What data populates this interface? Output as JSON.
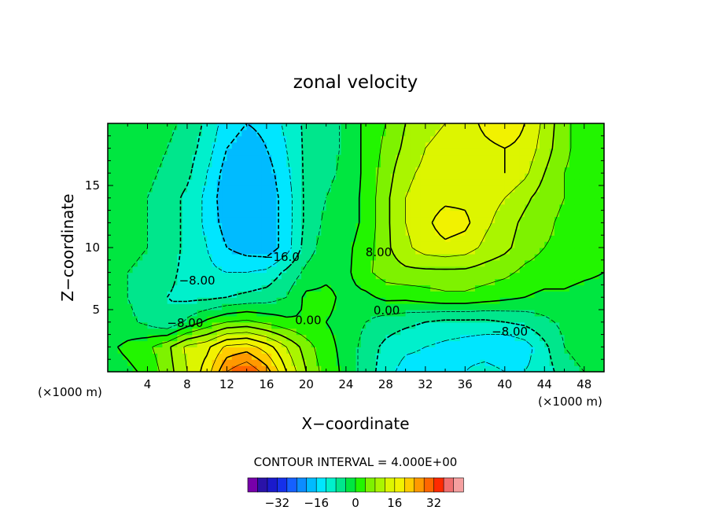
{
  "chart_data": {
    "type": "heatmap",
    "title": "zonal velocity",
    "xlabel": "X−coordinate",
    "ylabel": "Z−coordinate",
    "x_unit_left": "(×1000 m)",
    "x_unit_right": "(×1000 m)",
    "xlim": [
      0,
      50
    ],
    "ylim": [
      0,
      20
    ],
    "x_ticks": [
      4,
      8,
      12,
      16,
      20,
      24,
      28,
      32,
      36,
      40,
      44,
      48
    ],
    "y_ticks": [
      5,
      10,
      15
    ],
    "contour_interval_text": "CONTOUR INTERVAL = 4.000E+00",
    "colorbar": {
      "levels": [
        -40,
        -36,
        -32,
        -28,
        -24,
        -20,
        -16,
        -12,
        -8,
        -4,
        0,
        4,
        8,
        12,
        16,
        20,
        24,
        28,
        32,
        36,
        40
      ],
      "colors": [
        "#7700aa",
        "#2a12a8",
        "#1a1acc",
        "#1530ea",
        "#1560ff",
        "#0c8cff",
        "#00bbff",
        "#00e6ff",
        "#00f0cc",
        "#00e68c",
        "#00e640",
        "#22f500",
        "#7ef200",
        "#aaf500",
        "#ddf500",
        "#f2f200",
        "#ffcc00",
        "#ff9900",
        "#ff6600",
        "#ff2a00",
        "#f07070",
        "#f5a0a0"
      ],
      "tick_values": [
        -32,
        -16,
        0,
        16,
        32
      ],
      "tick_labels": [
        "−32",
        "−16",
        "0",
        "16",
        "32"
      ]
    },
    "contour_labels": [
      {
        "text": "−16.0",
        "x": 17.5,
        "y": 9.2
      },
      {
        "text": "−8.00",
        "x": 9.0,
        "y": 7.3
      },
      {
        "text": "−8.00",
        "x": 7.8,
        "y": 3.9
      },
      {
        "text": "0.00",
        "x": 20.2,
        "y": 4.1
      },
      {
        "text": "0.00",
        "x": 28.1,
        "y": 4.9
      },
      {
        "text": "8.00",
        "x": 27.3,
        "y": 9.6
      },
      {
        "text": "−8.00",
        "x": 40.5,
        "y": 3.2
      }
    ],
    "field": {
      "x": [
        0,
        2,
        4,
        6,
        8,
        10,
        12,
        14,
        16,
        18,
        20,
        22,
        24,
        26,
        28,
        30,
        32,
        34,
        36,
        38,
        40,
        42,
        44,
        46,
        48,
        50
      ],
      "z": [
        0,
        2,
        4,
        6,
        8,
        10,
        12,
        14,
        16,
        18,
        20
      ],
      "u": [
        [
          -2,
          -1,
          1,
          6,
          12,
          18,
          28,
          32,
          26,
          16,
          8,
          2,
          -1,
          -6,
          -10,
          -14,
          -14,
          -12,
          -12,
          -10,
          -12,
          -12,
          -10,
          -6,
          -4,
          -2
        ],
        [
          -1,
          1,
          3,
          7,
          13,
          15,
          21,
          22,
          18,
          12,
          6,
          1,
          -1,
          -6,
          -9,
          -11,
          -12,
          -13,
          -14,
          -15,
          -16,
          -14,
          -9,
          -4,
          -2,
          -1
        ],
        [
          -4,
          -3,
          -5,
          -8,
          -3,
          1,
          4,
          5,
          3,
          1,
          0,
          0,
          -1,
          -4,
          -6,
          -7,
          -8,
          -9,
          -9,
          -9,
          -8,
          -7,
          -5,
          -3,
          -2,
          -1
        ],
        [
          -3,
          -4,
          -6,
          -8,
          -9,
          -9,
          -8,
          -7,
          -6,
          -4,
          1,
          1,
          -1,
          -1,
          1,
          1,
          2,
          3,
          3,
          2,
          1,
          0,
          -1,
          -1,
          -2,
          -2
        ],
        [
          -3,
          -4,
          -5,
          -7,
          -9,
          -11,
          -12,
          -12,
          -11,
          -7,
          -3,
          -1,
          -1,
          3,
          6,
          7,
          7,
          7,
          7,
          6,
          5,
          3,
          2,
          2,
          1,
          0
        ],
        [
          -2,
          -3,
          -4,
          -6,
          -9,
          -12,
          -16,
          -18,
          -19,
          -14,
          -6,
          -2,
          -1,
          2,
          7,
          11,
          14,
          15,
          14,
          11,
          9,
          6,
          4,
          3,
          2,
          1
        ],
        [
          -2,
          -3,
          -4,
          -6,
          -9,
          -13,
          -18,
          -19,
          -19,
          -14,
          -7,
          -3,
          -2,
          1,
          7,
          12,
          15,
          18,
          17,
          13,
          10,
          7,
          5,
          3,
          2,
          1
        ],
        [
          -2,
          -3,
          -4,
          -6,
          -9,
          -13,
          -19,
          -19,
          -19,
          -14,
          -7,
          -4,
          -2,
          1,
          7,
          12,
          14,
          15,
          15,
          14,
          12,
          9,
          6,
          4,
          2,
          1
        ],
        [
          -1,
          -2,
          -3,
          -5,
          -7,
          -12,
          -18,
          -19,
          -18,
          -13,
          -7,
          -5,
          -3,
          1,
          6,
          11,
          13,
          14,
          14,
          15,
          16,
          13,
          8,
          4,
          2,
          1
        ],
        [
          -1,
          -2,
          -2,
          -4,
          -6,
          -10,
          -16,
          -18,
          -16,
          -12,
          -7,
          -6,
          -3,
          1,
          5,
          9,
          12,
          13,
          14,
          15,
          16,
          15,
          10,
          5,
          2,
          1
        ],
        [
          -1,
          -2,
          -2,
          -3,
          -5,
          -9,
          -14,
          -16,
          -15,
          -11,
          -7,
          -6,
          -3,
          1,
          4,
          8,
          11,
          12,
          14,
          17,
          19,
          16,
          11,
          5,
          2,
          1
        ]
      ]
    }
  }
}
